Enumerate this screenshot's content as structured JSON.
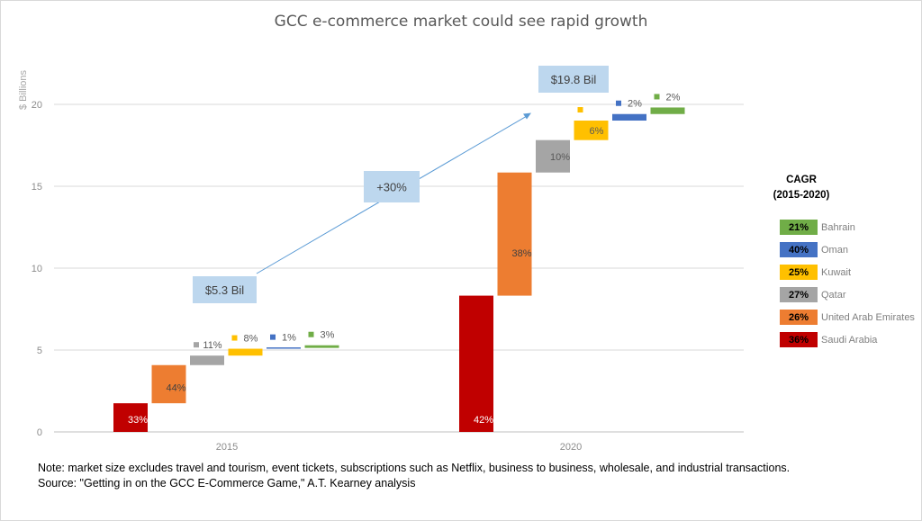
{
  "chart_data": {
    "type": "bar",
    "title": "GCC e-commerce market could see rapid growth",
    "ylabel": "$ Billions",
    "xlabel": "",
    "ylim": [
      0,
      22
    ],
    "yticks": [
      0,
      5,
      10,
      15,
      20
    ],
    "categories": [
      "2015",
      "2020"
    ],
    "grid": true,
    "stacking": "stepped",
    "series": [
      {
        "name": "Saudi Arabia",
        "color": "#c00000",
        "label_color": "#ffffff",
        "values": [
          1.75,
          8.32
        ],
        "labels": [
          "33%",
          "42%"
        ]
      },
      {
        "name": "United Arab Emirates",
        "color": "#ed7d31",
        "label_color": "#404040",
        "values": [
          2.33,
          7.52
        ],
        "labels": [
          "44%",
          "38%"
        ]
      },
      {
        "name": "Qatar",
        "color": "#a5a5a5",
        "label_color": "#595959",
        "values": [
          0.58,
          1.98
        ],
        "labels": [
          "11%",
          "10%"
        ]
      },
      {
        "name": "Kuwait",
        "color": "#ffc000",
        "label_color": "#595959",
        "values": [
          0.42,
          1.19
        ],
        "labels": [
          "8%",
          "6%"
        ]
      },
      {
        "name": "Oman",
        "color": "#4472c4",
        "label_color": "#595959",
        "values": [
          0.05,
          0.4
        ],
        "labels": [
          "1%",
          "2%"
        ]
      },
      {
        "name": "Bahrain",
        "color": "#70ad47",
        "label_color": "#595959",
        "values": [
          0.16,
          0.4
        ],
        "labels": [
          "3%",
          "2%"
        ]
      }
    ],
    "annotations": [
      {
        "text": "$5.3 Bil",
        "anchor": "2015"
      },
      {
        "text": "+30%",
        "anchor": "arrow"
      },
      {
        "text": "$19.8 Bil",
        "anchor": "2020"
      }
    ],
    "legend": {
      "placement": "right",
      "title_line1": "CAGR",
      "title_line2": "(2015-2020)",
      "items": [
        {
          "value": "21%",
          "label": "Bahrain",
          "color": "#70ad47"
        },
        {
          "value": "40%",
          "label": "Oman",
          "color": "#4472c4"
        },
        {
          "value": "25%",
          "label": "Kuwait",
          "color": "#ffc000"
        },
        {
          "value": "27%",
          "label": "Qatar",
          "color": "#a5a5a5"
        },
        {
          "value": "26%",
          "label": "United Arab Emirates",
          "color": "#ed7d31"
        },
        {
          "value": "36%",
          "label": "Saudi Arabia",
          "color": "#c00000"
        }
      ]
    }
  },
  "note": {
    "line1": "Note: market size excludes travel and tourism, event tickets, subscriptions such as Netflix, business to business, wholesale, and industrial transactions.",
    "line2": "Source: \"Getting in on the GCC E-Commerce Game,\" A.T. Kearney analysis"
  }
}
